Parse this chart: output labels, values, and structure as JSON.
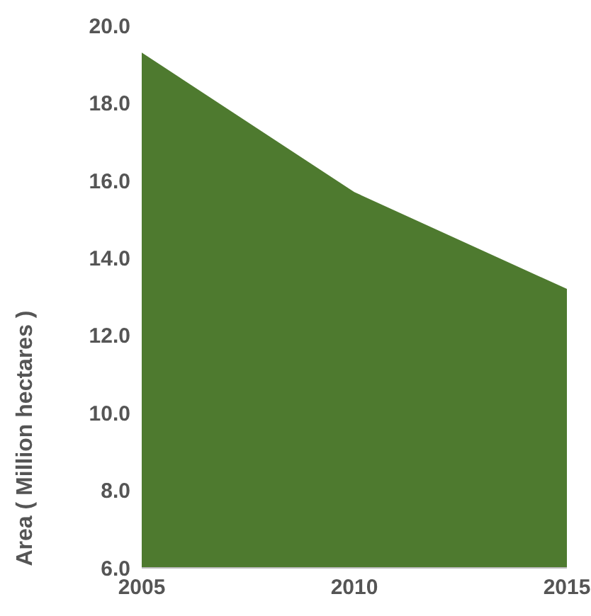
{
  "chart_data": {
    "type": "area",
    "ylabel": "Area ( Million hectares )",
    "x": [
      2005,
      2010,
      2015
    ],
    "series": [
      {
        "color": "#4e7a2f",
        "values": [
          19.3,
          15.7,
          13.2
        ]
      }
    ],
    "xlim": [
      2005,
      2015
    ],
    "xticks": [
      2005,
      2010,
      2015
    ],
    "ylim": [
      6,
      20
    ],
    "yticks": [
      {
        "value": 6,
        "label": "6.0"
      },
      {
        "value": 8,
        "label": "8.0"
      },
      {
        "value": 10,
        "label": "10.0"
      },
      {
        "value": 12,
        "label": "12.0"
      },
      {
        "value": 14,
        "label": "14.0"
      },
      {
        "value": 16,
        "label": "16.0"
      },
      {
        "value": 18,
        "label": "18.0"
      },
      {
        "value": 20,
        "label": "20.0"
      }
    ],
    "grid": false,
    "legend": false
  }
}
